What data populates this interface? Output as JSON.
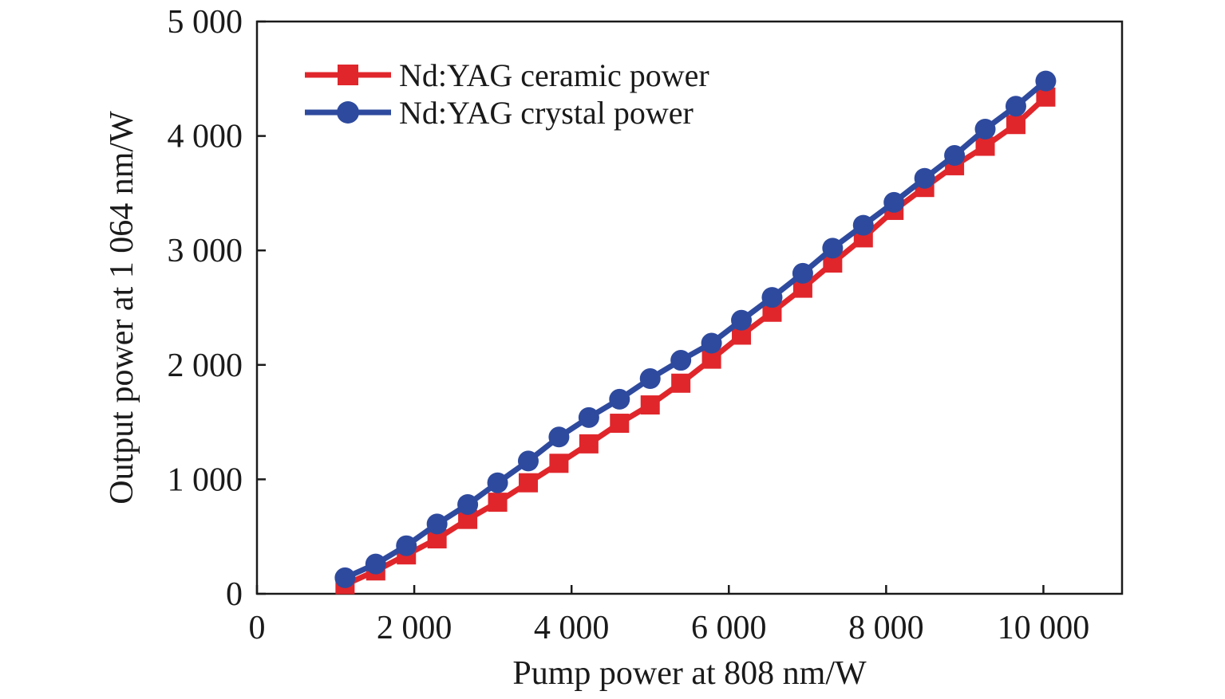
{
  "chart_data": {
    "type": "line",
    "title": "",
    "xlabel": "Pump power at 808 nm/W",
    "ylabel": "Output power at 1 064 nm/W",
    "xlim": [
      0,
      11000
    ],
    "ylim": [
      0,
      5000
    ],
    "x_ticks": [
      0,
      2000,
      4000,
      6000,
      8000,
      10000
    ],
    "x_tick_labels": [
      "0",
      "2 000",
      "4 000",
      "6 000",
      "8 000",
      "10 000"
    ],
    "y_ticks": [
      0,
      1000,
      2000,
      3000,
      4000,
      5000
    ],
    "y_tick_labels": [
      "0",
      "1 000",
      "2 000",
      "3 000",
      "4 000",
      "5 000"
    ],
    "grid": false,
    "legend_position": "top-left",
    "series": [
      {
        "name": "Nd:YAG ceramic power",
        "color": "#e0262b",
        "marker": "square",
        "x": [
          1120,
          1510,
          1900,
          2290,
          2680,
          3060,
          3450,
          3840,
          4220,
          4610,
          5000,
          5390,
          5780,
          6160,
          6550,
          6940,
          7320,
          7710,
          8100,
          8490,
          8870,
          9260,
          9650,
          10030
        ],
        "y": [
          80,
          200,
          340,
          480,
          650,
          800,
          970,
          1140,
          1310,
          1490,
          1650,
          1840,
          2050,
          2260,
          2460,
          2670,
          2890,
          3110,
          3350,
          3550,
          3740,
          3910,
          4100,
          4340
        ]
      },
      {
        "name": "Nd:YAG crystal power",
        "color": "#2e4a9e",
        "marker": "circle",
        "x": [
          1120,
          1510,
          1900,
          2290,
          2680,
          3060,
          3450,
          3840,
          4220,
          4610,
          5000,
          5390,
          5780,
          6160,
          6550,
          6940,
          7320,
          7710,
          8100,
          8490,
          8870,
          9260,
          9650,
          10030
        ],
        "y": [
          140,
          260,
          420,
          610,
          780,
          970,
          1160,
          1370,
          1540,
          1700,
          1880,
          2040,
          2190,
          2390,
          2590,
          2800,
          3020,
          3220,
          3420,
          3630,
          3830,
          4060,
          4260,
          4480
        ]
      }
    ]
  }
}
